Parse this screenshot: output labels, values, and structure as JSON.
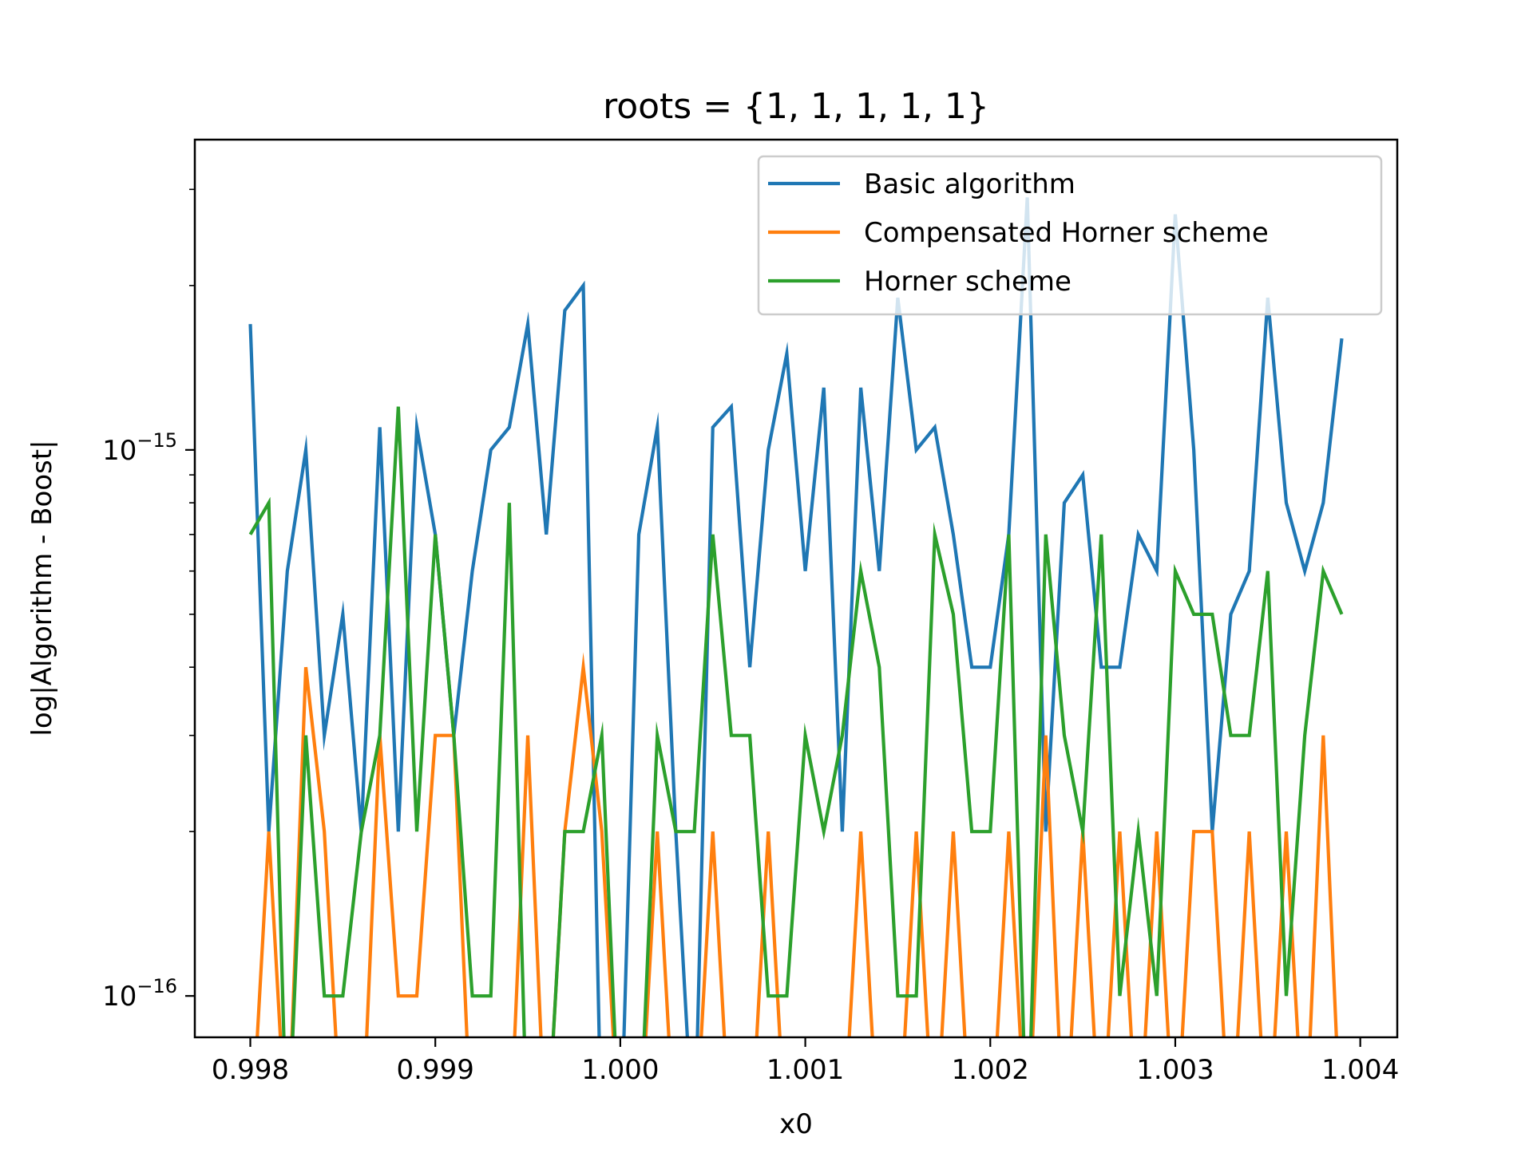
{
  "chart_data": {
    "type": "line",
    "title": "roots = {1, 1, 1, 1, 1}",
    "xlabel": "x0",
    "ylabel": "log|Algorithm - Boost|",
    "xscale": "linear",
    "yscale": "log",
    "xlim": [
      0.9977,
      1.0042
    ],
    "ylim": [
      8.4e-17,
      3.7e-15
    ],
    "x_ticks": [
      0.998,
      0.999,
      1.0,
      1.001,
      1.002,
      1.003,
      1.004
    ],
    "x_tick_labels": [
      "0.998",
      "0.999",
      "1.000",
      "1.001",
      "1.002",
      "1.003",
      "1.004"
    ],
    "y_ticks": [
      {
        "value": 1e-16,
        "base": "10",
        "exp": "−16"
      },
      {
        "value": 1e-15,
        "base": "10",
        "exp": "−15"
      }
    ],
    "y_minor_ticks": [
      2e-16,
      3e-16,
      4e-16,
      5e-16,
      6e-16,
      7e-16,
      8e-16,
      9e-16,
      2e-15,
      3e-15
    ],
    "floor_value": 5e-17,
    "legend_position": "top-right",
    "x": [
      0.998,
      0.9981,
      0.9982,
      0.9983,
      0.9984,
      0.9985,
      0.9986,
      0.9987,
      0.9988,
      0.9989,
      0.999,
      0.9991,
      0.9992,
      0.9993,
      0.9994,
      0.9995,
      0.9996,
      0.9997,
      0.9998,
      0.9999,
      1.0,
      1.0001,
      1.0002,
      1.0003,
      1.0004,
      1.0005,
      1.0006,
      1.0007,
      1.0008,
      1.0009,
      1.001,
      1.0011,
      1.0012,
      1.0013,
      1.0014,
      1.0015,
      1.0016,
      1.0017,
      1.0018,
      1.0019,
      1.002,
      1.0021,
      1.0022,
      1.0023,
      1.0024,
      1.0025,
      1.0026,
      1.0027,
      1.0028,
      1.0029,
      1.003,
      1.0031,
      1.0032,
      1.0033,
      1.0034,
      1.0035,
      1.0036,
      1.0037,
      1.0038,
      1.0039
    ],
    "series": [
      {
        "name": "Basic algorithm",
        "color": "#1f77b4",
        "values": [
          1.7e-15,
          2e-16,
          6e-16,
          1e-15,
          3e-16,
          5e-16,
          2e-16,
          1.1e-15,
          2e-16,
          1.1e-15,
          7e-16,
          3e-16,
          6e-16,
          1e-15,
          1.1e-15,
          1.7e-15,
          7e-16,
          1.8e-15,
          2e-15,
          0,
          0,
          7e-16,
          1.1e-15,
          2e-16,
          0,
          1.1e-15,
          1.2e-15,
          4e-16,
          1e-15,
          1.5e-15,
          6e-16,
          1.3e-15,
          2e-16,
          1.3e-15,
          6e-16,
          1.9e-15,
          1e-15,
          1.1e-15,
          7e-16,
          4e-16,
          4e-16,
          7e-16,
          2.9e-15,
          2e-16,
          8e-16,
          9e-16,
          4e-16,
          4e-16,
          7e-16,
          6e-16,
          2.7e-15,
          1e-15,
          2e-16,
          5e-16,
          6e-16,
          1.9e-15,
          8e-16,
          6e-16,
          8e-16,
          1.6e-15
        ]
      },
      {
        "name": "Compensated Horner scheme",
        "color": "#ff7f0e",
        "values": [
          0,
          2e-16,
          0,
          4e-16,
          2e-16,
          0,
          0,
          3e-16,
          1e-16,
          1e-16,
          3e-16,
          3e-16,
          0,
          0,
          0,
          3e-16,
          0,
          2e-16,
          4e-16,
          2e-16,
          0,
          0,
          2e-16,
          0,
          0,
          2e-16,
          0,
          0,
          2e-16,
          0,
          0,
          0,
          0,
          2e-16,
          0,
          0,
          2e-16,
          0,
          2e-16,
          0,
          0,
          2e-16,
          0,
          3e-16,
          0,
          2e-16,
          0,
          2e-16,
          0,
          2e-16,
          0,
          2e-16,
          2e-16,
          0,
          2e-16,
          0,
          2e-16,
          0,
          3e-16,
          0
        ]
      },
      {
        "name": "Horner scheme",
        "color": "#2ca02c",
        "values": [
          7e-16,
          8e-16,
          0,
          3e-16,
          1e-16,
          1e-16,
          2e-16,
          3e-16,
          1.2e-15,
          2e-16,
          7e-16,
          3e-16,
          1e-16,
          1e-16,
          8e-16,
          0,
          0,
          2e-16,
          2e-16,
          3e-16,
          0,
          0,
          3e-16,
          2e-16,
          2e-16,
          7e-16,
          3e-16,
          3e-16,
          1e-16,
          1e-16,
          3e-16,
          2e-16,
          3e-16,
          6e-16,
          4e-16,
          1e-16,
          1e-16,
          7e-16,
          5e-16,
          2e-16,
          2e-16,
          7e-16,
          0,
          7e-16,
          3e-16,
          2e-16,
          7e-16,
          1e-16,
          2e-16,
          1e-16,
          6e-16,
          5e-16,
          5e-16,
          3e-16,
          3e-16,
          6e-16,
          1e-16,
          3e-16,
          6e-16,
          5e-16
        ]
      }
    ]
  }
}
